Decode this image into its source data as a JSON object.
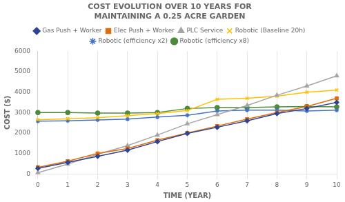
{
  "chart_data": {
    "type": "line",
    "title": "COST EVOLUTION OVER 10 YEARS FOR\nMAINTAINING A 0.25 ACRE GARDEN",
    "x_label": "TIME (YEAR)",
    "y_label": "COST ($)",
    "x": [
      0,
      1,
      2,
      3,
      4,
      5,
      6,
      7,
      8,
      9,
      10
    ],
    "xlim": [
      0,
      10
    ],
    "xticks": [
      0,
      1,
      2,
      3,
      4,
      5,
      6,
      7,
      8,
      9,
      10
    ],
    "ylim": [
      0,
      6000
    ],
    "yticks": [
      0,
      1000,
      2000,
      3000,
      4000,
      5000,
      6000
    ],
    "grid": "x",
    "legend": "top",
    "series": [
      {
        "name": "Gas Push + Worker",
        "color": "#2E4496",
        "marker": "diamond",
        "values": [
          270,
          560,
          860,
          1160,
          1580,
          1980,
          2280,
          2600,
          2950,
          3200,
          3500
        ]
      },
      {
        "name": "Elec Push + Worker",
        "color": "#E36C09",
        "marker": "square",
        "values": [
          320,
          620,
          1000,
          1240,
          1650,
          2000,
          2340,
          2680,
          3000,
          3300,
          3700
        ]
      },
      {
        "name": "PLC Service",
        "color": "#A5A5A5",
        "marker": "triangle",
        "values": [
          60,
          480,
          960,
          1380,
          1900,
          2450,
          2900,
          3350,
          3850,
          4300,
          4800
        ]
      },
      {
        "name": "Robotic (Baseline 20h)",
        "color": "#FFC000",
        "marker": "x",
        "values": [
          2650,
          2700,
          2750,
          2850,
          2950,
          3100,
          3650,
          3700,
          3800,
          4000,
          4100
        ]
      },
      {
        "name": "Robotic (efficiency x2)",
        "color": "#4472C4",
        "marker": "star",
        "values": [
          2580,
          2600,
          2640,
          2680,
          2780,
          2870,
          3080,
          3120,
          3120,
          3080,
          3120
        ]
      },
      {
        "name": "Robotic (efficiency x8)",
        "color": "#4E8A3B",
        "marker": "circle",
        "values": [
          3000,
          3000,
          2980,
          2980,
          3000,
          3200,
          3250,
          3250,
          3280,
          3300,
          3280
        ]
      }
    ]
  }
}
